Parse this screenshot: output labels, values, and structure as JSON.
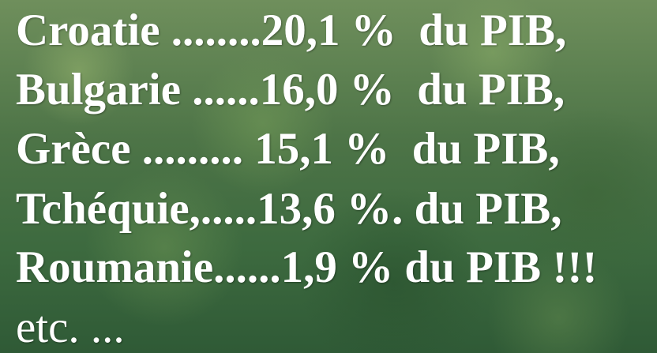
{
  "lines": [
    "Croatie ........20,1 %  du PIB,",
    "Bulgarie ......16,0 %  du PIB,",
    "Grèce ......... 15,1 %  du PIB,",
    "Tchéquie,.....13,6 %. du PIB,",
    "Roumanie......1,9 % du PIB !!!",
    "etc. ..."
  ]
}
